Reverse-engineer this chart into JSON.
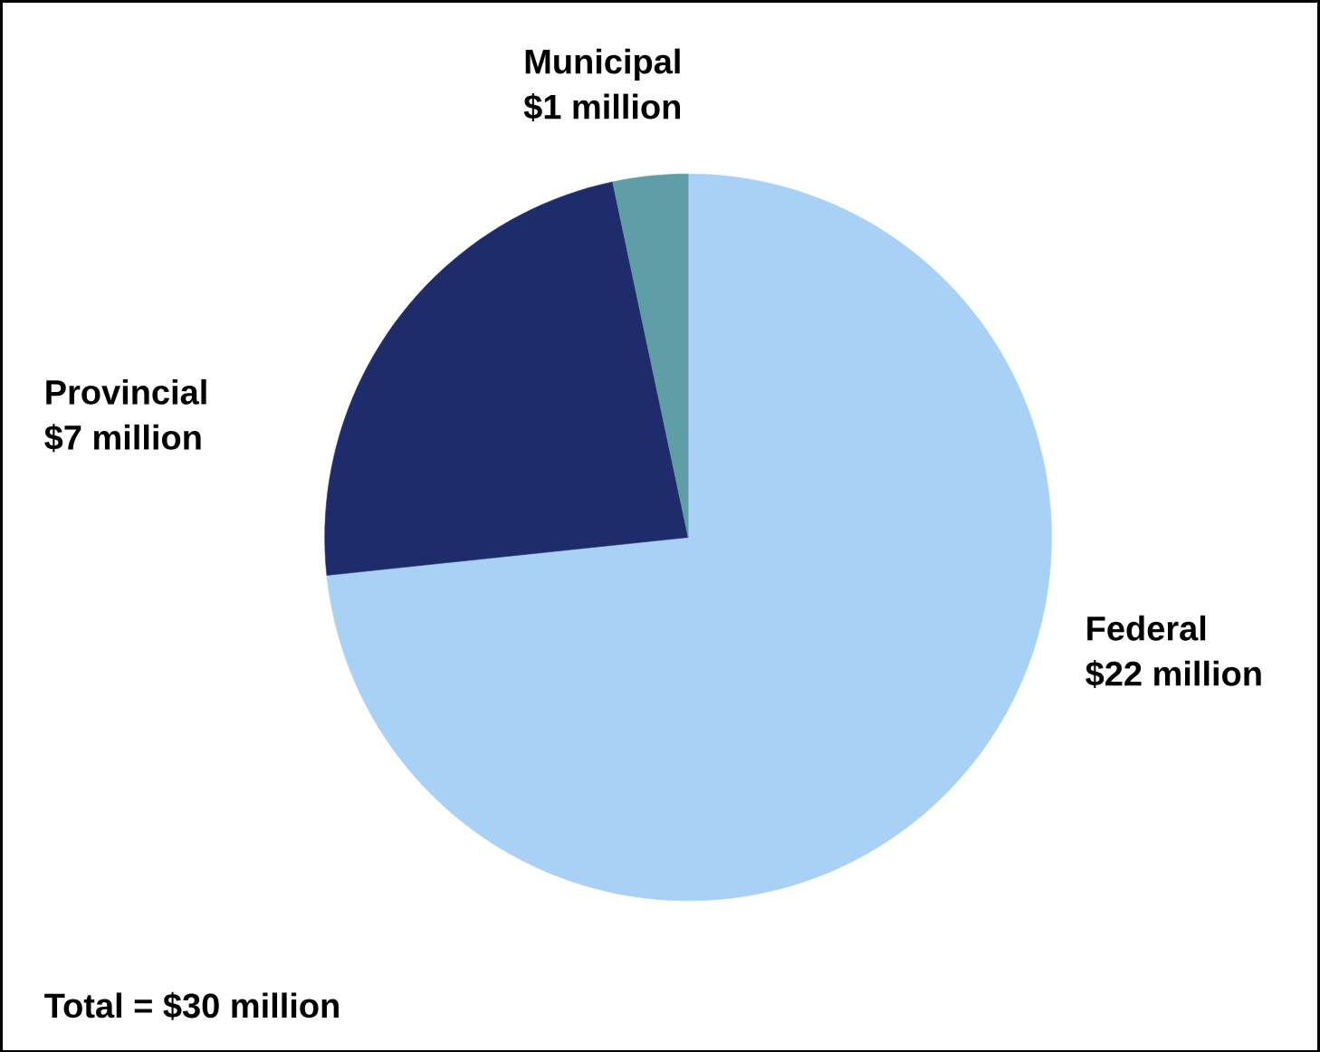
{
  "chart_data": {
    "type": "pie",
    "categories": [
      "Federal",
      "Provincial",
      "Municipal"
    ],
    "values": [
      22,
      7,
      1
    ],
    "colors": [
      "#a9d0f5",
      "#1f2c6b",
      "#5f9ea6"
    ],
    "value_labels": [
      "$22 million",
      "$7 million",
      "$1 million"
    ],
    "annotations": [
      "Total = $30 million"
    ]
  }
}
